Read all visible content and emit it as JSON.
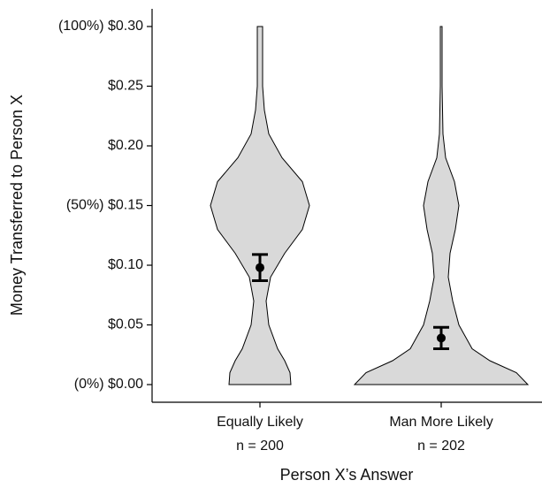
{
  "chart_data": {
    "type": "violin",
    "x_label": "Person X’s Answer",
    "y_label": "Money Transferred to Person X",
    "categories": [
      "Equally Likely",
      "Man More Likely"
    ],
    "sublabels": [
      "n = 200",
      "n = 202"
    ],
    "means": [
      0.098,
      0.039
    ],
    "errors": [
      0.011,
      0.009
    ],
    "density_y": [
      0,
      0.01,
      0.02,
      0.03,
      0.05,
      0.07,
      0.09,
      0.11,
      0.13,
      0.15,
      0.17,
      0.19,
      0.21,
      0.23,
      0.25,
      0.27,
      0.3
    ],
    "densities": [
      [
        35,
        34,
        28,
        20,
        10,
        7,
        12,
        28,
        48,
        56,
        48,
        25,
        10,
        5,
        3,
        3,
        3
      ],
      [
        98,
        85,
        55,
        35,
        20,
        13,
        8,
        10,
        16,
        20,
        15,
        5,
        2,
        1.5,
        1,
        1,
        1
      ]
    ],
    "color": "#d9d9d9",
    "ylim": [
      -0.0148,
      0.3148
    ],
    "yticks": [
      {
        "value": 0,
        "label": "(0%) $0.00"
      },
      {
        "value": 0.05,
        "label": "$0.05"
      },
      {
        "value": 0.1,
        "label": "$0.10"
      },
      {
        "value": 0.15,
        "label": "(50%) $0.15"
      },
      {
        "value": 0.2,
        "label": "$0.20"
      },
      {
        "value": 0.25,
        "label": "$0.25"
      },
      {
        "value": 0.3,
        "label": "(100%) $0.30"
      }
    ]
  }
}
